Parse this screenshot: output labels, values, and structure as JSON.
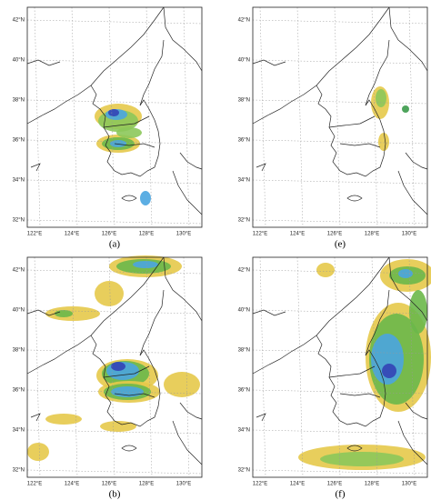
{
  "panels": [
    {
      "label": "(a)"
    },
    {
      "label": "(e)"
    },
    {
      "label": "(b)"
    },
    {
      "label": "(f)"
    }
  ],
  "lat_labels": [
    "42°N",
    "40°N",
    "38°N",
    "36°N",
    "34°N",
    "32°N"
  ],
  "lon_labels": [
    "122°E",
    "124°E",
    "126°E",
    "128°E",
    "130°E"
  ]
}
